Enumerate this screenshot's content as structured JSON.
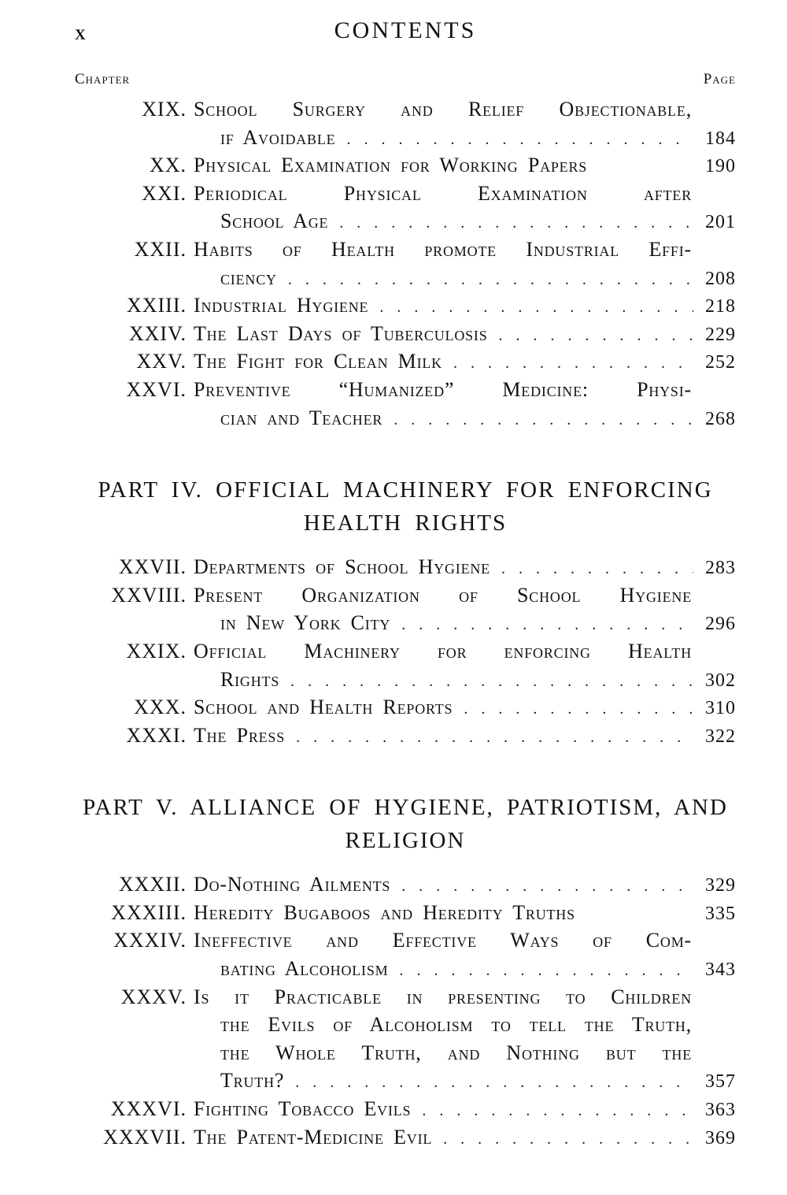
{
  "colors": {
    "ink": "#121212",
    "paper": "#ffffff"
  },
  "toc": {
    "page_number": "x",
    "title": "CONTENTS",
    "chapter_label": "Chapter",
    "page_label": "Page",
    "sections": [
      {
        "heading_lines": [],
        "rows": [
          {
            "num": "XIX.",
            "text": "School Surgery and Relief Objectionable,",
            "style": "justify"
          },
          {
            "num": "",
            "text": "if Avoidable",
            "page": "184",
            "indent": true
          },
          {
            "num": "XX.",
            "text": "Physical Examination for Working Papers",
            "page": "190",
            "nodots": true
          },
          {
            "num": "XXI.",
            "text": "Periodical Physical Examination after",
            "style": "justify"
          },
          {
            "num": "",
            "text": "School Age",
            "page": "201",
            "indent": true
          },
          {
            "num": "XXII.",
            "text": "Habits of Health promote Industrial Effi-",
            "style": "justify"
          },
          {
            "num": "",
            "text": "ciency",
            "page": "208",
            "indent": true
          },
          {
            "num": "XXIII.",
            "text": "Industrial Hygiene",
            "page": "218"
          },
          {
            "num": "XXIV.",
            "text": "The Last Days of Tuberculosis",
            "page": "229"
          },
          {
            "num": "XXV.",
            "text": "The Fight for Clean Milk",
            "page": "252"
          },
          {
            "num": "XXVI.",
            "text": "Preventive “Humanized” Medicine: Physi-",
            "style": "justify"
          },
          {
            "num": "",
            "text": "cian and Teacher",
            "page": "268",
            "indent": true
          }
        ]
      },
      {
        "heading_lines": [
          "PART IV. OFFICIAL MACHINERY FOR ENFORCING",
          "HEALTH RIGHTS"
        ],
        "rows": [
          {
            "num": "XXVII.",
            "text": "Departments of School Hygiene",
            "page": "283"
          },
          {
            "num": "XXVIII.",
            "text": "Present Organization of School Hygiene",
            "style": "justify"
          },
          {
            "num": "",
            "text": "in New York City",
            "page": "296",
            "indent": true
          },
          {
            "num": "XXIX.",
            "text": "Official Machinery for enforcing Health",
            "style": "justify"
          },
          {
            "num": "",
            "text": "Rights",
            "page": "302",
            "indent": true
          },
          {
            "num": "XXX.",
            "text": "School and Health Reports",
            "page": "310"
          },
          {
            "num": "XXXI.",
            "text": "The Press",
            "page": "322"
          }
        ]
      },
      {
        "heading_lines": [
          "PART V. ALLIANCE OF HYGIENE, PATRIOTISM, AND",
          "RELIGION"
        ],
        "rows": [
          {
            "num": "XXXII.",
            "text": "Do-Nothing Ailments",
            "page": "329"
          },
          {
            "num": "XXXIII.",
            "text": "Heredity Bugaboos and Heredity Truths",
            "page": "335",
            "nodots": true
          },
          {
            "num": "XXXIV.",
            "text": "Ineffective and Effective Ways of Com-",
            "style": "justify"
          },
          {
            "num": "",
            "text": "bating Alcoholism",
            "page": "343",
            "indent": true
          },
          {
            "num": "XXXV.",
            "text": "Is it Practicable in presenting to Children",
            "style": "justify"
          },
          {
            "num": "",
            "text": "the Evils of Alcoholism to tell the Truth,",
            "indent": true,
            "style": "justify"
          },
          {
            "num": "",
            "text": "the Whole Truth, and Nothing but the",
            "indent": true,
            "style": "justify"
          },
          {
            "num": "",
            "text": "Truth?",
            "page": "357",
            "indent": true
          },
          {
            "num": "XXXVI.",
            "text": "Fighting Tobacco Evils",
            "page": "363"
          },
          {
            "num": "XXXVII.",
            "text": "The Patent-Medicine Evil",
            "page": "369"
          }
        ]
      }
    ]
  }
}
